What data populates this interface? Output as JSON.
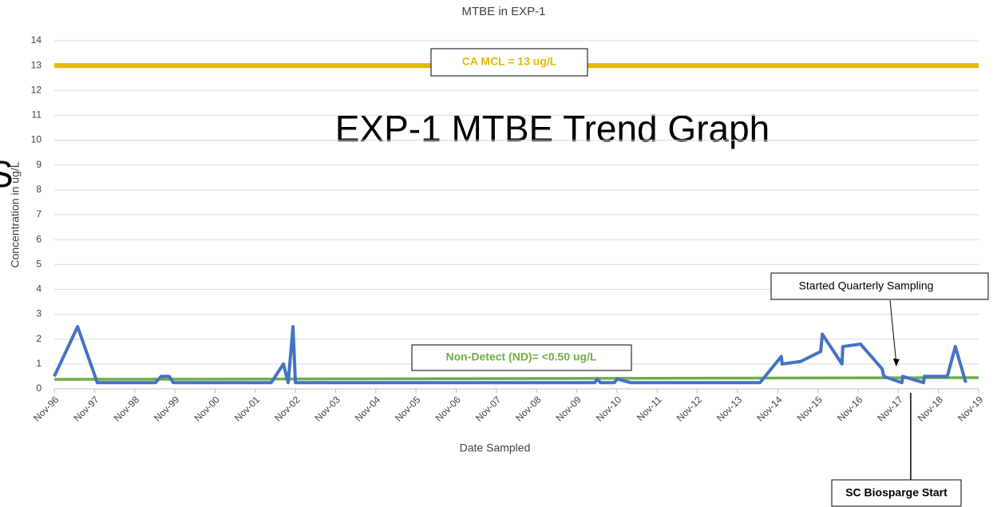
{
  "chart_data": {
    "type": "line",
    "title": "MTBE in EXP-1",
    "overlay_title": "EXP-1 MTBE Trend Graph",
    "edge_text": "S",
    "x_label": "Date Sampled",
    "y_label": "Concentration in ug/L",
    "xlim": [
      1996.83,
      2019.83
    ],
    "xticks": [
      {
        "value": 1996.83,
        "label": "Nov-96"
      },
      {
        "value": 1997.83,
        "label": "Nov-97"
      },
      {
        "value": 1998.83,
        "label": "Nov-98"
      },
      {
        "value": 1999.83,
        "label": "Nov-99"
      },
      {
        "value": 2000.83,
        "label": "Nov-00"
      },
      {
        "value": 2001.83,
        "label": "Nov-01"
      },
      {
        "value": 2002.83,
        "label": "Nov-02"
      },
      {
        "value": 2003.83,
        "label": "Nov-03"
      },
      {
        "value": 2004.83,
        "label": "Nov-04"
      },
      {
        "value": 2005.83,
        "label": "Nov-05"
      },
      {
        "value": 2006.83,
        "label": "Nov-06"
      },
      {
        "value": 2007.83,
        "label": "Nov-07"
      },
      {
        "value": 2008.83,
        "label": "Nov-08"
      },
      {
        "value": 2009.83,
        "label": "Nov-09"
      },
      {
        "value": 2010.83,
        "label": "Nov-10"
      },
      {
        "value": 2011.83,
        "label": "Nov-11"
      },
      {
        "value": 2012.83,
        "label": "Nov-12"
      },
      {
        "value": 2013.83,
        "label": "Nov-13"
      },
      {
        "value": 2014.83,
        "label": "Nov-14"
      },
      {
        "value": 2015.83,
        "label": "Nov-15"
      },
      {
        "value": 2016.83,
        "label": "Nov-16"
      },
      {
        "value": 2017.83,
        "label": "Nov-17"
      },
      {
        "value": 2018.83,
        "label": "Nov-18"
      },
      {
        "value": 2019.83,
        "label": "Nov-19"
      }
    ],
    "ylim": [
      0,
      14
    ],
    "yticks": [
      0,
      1,
      2,
      3,
      4,
      5,
      6,
      7,
      8,
      9,
      10,
      11,
      12,
      13,
      14
    ],
    "grid": true,
    "series": [
      {
        "color": "#4472c4",
        "x": [
          1996.83,
          1997.41,
          1997.9,
          1999.35,
          1999.49,
          1999.69,
          1999.79,
          2002.23,
          2002.53,
          2002.65,
          2002.77,
          2002.83,
          2010.28,
          2010.34,
          2010.42,
          2010.77,
          2010.83,
          2011.17,
          2014.39,
          2014.92,
          2014.94,
          2015.4,
          2015.9,
          2015.94,
          2016.43,
          2016.45,
          2016.89,
          2017.43,
          2017.47,
          2017.92,
          2017.94,
          2018.46,
          2018.48,
          2019.05,
          2019.25,
          2019.51
        ],
        "values": [
          0.5,
          2.5,
          0.25,
          0.25,
          0.5,
          0.5,
          0.25,
          0.25,
          1.0,
          0.25,
          2.5,
          0.25,
          0.25,
          0.4,
          0.25,
          0.25,
          0.4,
          0.25,
          0.25,
          1.3,
          1.0,
          1.1,
          1.5,
          2.2,
          1.0,
          1.7,
          1.8,
          0.8,
          0.5,
          0.25,
          0.5,
          0.25,
          0.5,
          0.5,
          1.7,
          0.25
        ]
      },
      {
        "color": "#70ad47",
        "x": [
          1996.83,
          2019.83
        ],
        "values": [
          0.38,
          0.45
        ]
      }
    ],
    "reference_line": {
      "value": 13,
      "color": "#e6b800",
      "label": "CA MCL = 13 ug/L"
    },
    "nd_label": "Non-Detect (ND)= <0.50 ug/L",
    "annotations": [
      {
        "text": "Started Quarterly Sampling",
        "x": 2017.78,
        "y": 0.9
      },
      {
        "text": "SC Biosparge Start",
        "x": 2018.14
      }
    ]
  }
}
